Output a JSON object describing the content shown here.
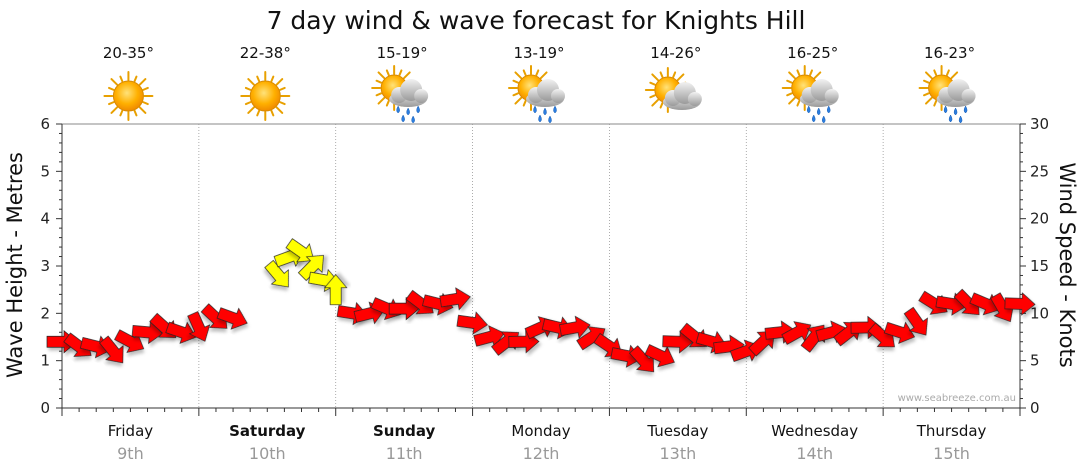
{
  "chart_data": {
    "type": "line",
    "title": "7 day wind & wave forecast for Knights Hill",
    "ylabel_left": "Wave Height - Metres",
    "ylabel_right": "Wind Speed - Knots",
    "ylim_left": [
      0,
      6
    ],
    "ylim_right": [
      0,
      30
    ],
    "yticks_left": [
      "0",
      "1",
      "2",
      "3",
      "4",
      "5",
      "6"
    ],
    "yticks_right": [
      "0",
      "5",
      "10",
      "15",
      "20",
      "25",
      "30"
    ],
    "grid": true,
    "credit": "www.seabreeze.com.au",
    "days": [
      {
        "name": "Friday",
        "date": "9th",
        "bold": false,
        "temp": "20-35°",
        "icon": "sunny-icon"
      },
      {
        "name": "Saturday",
        "date": "10th",
        "bold": true,
        "temp": "22-38°",
        "icon": "sunny-icon"
      },
      {
        "name": "Sunday",
        "date": "11th",
        "bold": true,
        "temp": "15-19°",
        "icon": "sun-cloud-rain-icon"
      },
      {
        "name": "Monday",
        "date": "12th",
        "bold": false,
        "temp": "13-19°",
        "icon": "sun-cloud-rain-icon"
      },
      {
        "name": "Tuesday",
        "date": "13th",
        "bold": false,
        "temp": "14-26°",
        "icon": "sun-cloud-icon"
      },
      {
        "name": "Wednesday",
        "date": "14th",
        "bold": false,
        "temp": "16-25°",
        "icon": "sun-cloud-rain-icon"
      },
      {
        "name": "Thursday",
        "date": "15th",
        "bold": false,
        "temp": "16-23°",
        "icon": "sun-cloud-rain-icon"
      }
    ],
    "series": [
      {
        "color": "#ff0000",
        "x_hours": [
          0,
          3,
          6,
          9,
          12,
          15,
          18,
          21,
          24,
          27,
          30,
          33,
          36,
          39,
          42,
          45,
          48,
          51,
          54,
          57,
          60,
          63,
          66,
          69,
          72,
          75,
          78,
          81,
          84,
          87,
          90,
          93,
          96,
          99,
          102,
          105,
          108,
          111,
          114,
          117,
          120,
          123,
          126,
          129,
          132,
          135,
          138,
          141,
          144,
          147,
          150,
          153,
          156,
          159,
          162,
          165,
          168
        ],
        "wind_knots": [
          7,
          6.5,
          6.5,
          6,
          7,
          8,
          8.5,
          8,
          8.5,
          9.5,
          9.5,
          null,
          null,
          null,
          null,
          null,
          null,
          10,
          10,
          10.5,
          10.5,
          11,
          11,
          11.5,
          9,
          7.5,
          7,
          7,
          8.5,
          8.5,
          8.5,
          7.5,
          6.5,
          5.5,
          5,
          5.5,
          7,
          7.5,
          7,
          6.5,
          6,
          7,
          8,
          8,
          7.5,
          8,
          8,
          8.5,
          7.5,
          8,
          9,
          11,
          11,
          11,
          11,
          10.5,
          11
        ]
      },
      {
        "color": "#ffff00",
        "x_hours": [
          38,
          40,
          42,
          44,
          46,
          48
        ],
        "wind_knots": [
          14,
          16,
          16.5,
          15,
          13.5,
          12.5
        ]
      }
    ]
  }
}
